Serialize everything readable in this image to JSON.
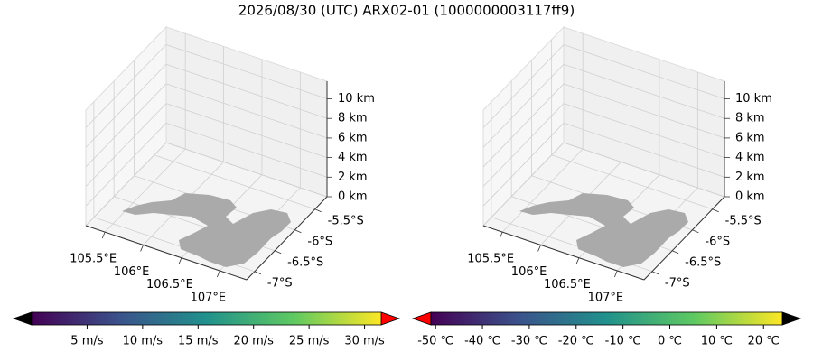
{
  "title": "2026/08/30 (UTC) ARX02-01 (1000000003117ff9)",
  "chart_data": [
    {
      "type": "wind-3d",
      "xlim": [
        105.25,
        107.35
      ],
      "ylim": [
        -7.2,
        -5.2
      ],
      "zlim": [
        0,
        11.8
      ],
      "xticks": [
        {
          "value": 105.5,
          "label": "105.5°E"
        },
        {
          "value": 106,
          "label": "106°E"
        },
        {
          "value": 106.5,
          "label": "106.5°E"
        },
        {
          "value": 107,
          "label": "107°E"
        }
      ],
      "yticks": [
        {
          "value": -5.5,
          "label": "-5.5°S"
        },
        {
          "value": -6,
          "label": "-6°S"
        },
        {
          "value": -6.5,
          "label": "-6.5°S"
        },
        {
          "value": -7,
          "label": "-7°S"
        }
      ],
      "zticks": [
        {
          "value": 0,
          "label": "0 km"
        },
        {
          "value": 2,
          "label": "2 km"
        },
        {
          "value": 4,
          "label": "4 km"
        },
        {
          "value": 6,
          "label": "6 km"
        },
        {
          "value": 8,
          "label": "8 km"
        },
        {
          "value": 10,
          "label": "10 km"
        }
      ],
      "grid": true
    },
    {
      "type": "voxel-3d",
      "xlim": [
        105.25,
        107.35
      ],
      "ylim": [
        -7.2,
        -5.2
      ],
      "zlim": [
        0,
        11.8
      ],
      "xticks": [
        {
          "value": 105.5,
          "label": "105.5°E"
        },
        {
          "value": 106,
          "label": "106°E"
        },
        {
          "value": 106.5,
          "label": "106.5°E"
        },
        {
          "value": 107,
          "label": "107°E"
        }
      ],
      "yticks": [
        {
          "value": -5.5,
          "label": "-5.5°S"
        },
        {
          "value": -6,
          "label": "-6°S"
        },
        {
          "value": -6.5,
          "label": "-6.5°S"
        },
        {
          "value": -7,
          "label": "-7°S"
        }
      ],
      "zticks": [
        {
          "value": 0,
          "label": "0 km"
        },
        {
          "value": 2,
          "label": "2 km"
        },
        {
          "value": 4,
          "label": "4 km"
        },
        {
          "value": 6,
          "label": "6 km"
        },
        {
          "value": 8,
          "label": "8 km"
        },
        {
          "value": 10,
          "label": "10 km"
        }
      ],
      "grid": true
    },
    {
      "type": "colorbar",
      "lim": [
        0,
        31.5
      ],
      "colormap": [
        "#440154",
        "#3b528b",
        "#21918c",
        "#5ec962",
        "#fde725"
      ],
      "extend_colors": [
        "#000000",
        "#ff0000"
      ],
      "ticks": [
        {
          "value": 5,
          "label": "5 m/s"
        },
        {
          "value": 10,
          "label": "10 m/s"
        },
        {
          "value": 15,
          "label": "15 m/s"
        },
        {
          "value": 20,
          "label": "20 m/s"
        },
        {
          "value": 25,
          "label": "25 m/s"
        },
        {
          "value": 30,
          "label": "30 m/s"
        }
      ]
    },
    {
      "type": "colorbar",
      "lim": [
        -51,
        24
      ],
      "colormap": [
        "#440154",
        "#3b528b",
        "#21918c",
        "#5ec962",
        "#fde725"
      ],
      "extend_colors": [
        "#ff0000",
        "#000000"
      ],
      "ticks": [
        {
          "value": -50,
          "label": "-50 ℃"
        },
        {
          "value": -40,
          "label": "-40 ℃"
        },
        {
          "value": -30,
          "label": "-30 ℃"
        },
        {
          "value": -20,
          "label": "-20 ℃"
        },
        {
          "value": -10,
          "label": "-10 ℃"
        },
        {
          "value": 0,
          "label": "0 ℃"
        },
        {
          "value": 10,
          "label": "10 ℃"
        },
        {
          "value": 20,
          "label": "20 ℃"
        }
      ]
    }
  ]
}
